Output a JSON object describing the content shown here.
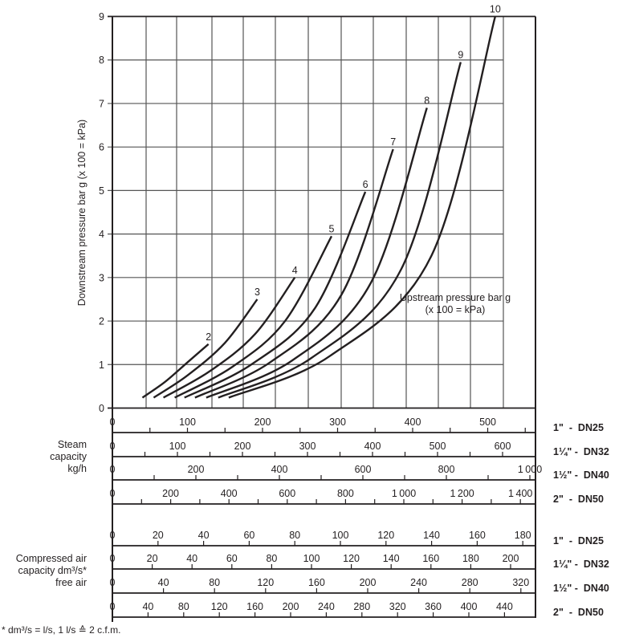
{
  "chart_data": {
    "type": "line",
    "title": "",
    "xlabel": "Steam capacity kg/h / Compressed air capacity dm³/s* free air",
    "ylabel": "Downstream pressure bar g (x 100 = kPa)",
    "ylim": [
      0,
      9
    ],
    "xlim": [
      0,
      560
    ],
    "grid": true,
    "y_ticks": [
      0,
      1,
      2,
      3,
      4,
      5,
      6,
      7,
      8,
      9
    ],
    "curve_annotation": "Upstream pressure bar g\n(x 100 = kPa)",
    "annotation_lines": [
      "Upstream pressure bar g",
      "(x 100 = kPa)"
    ],
    "series_note": "Curves labelled by upstream pressure (bar g); x values on the 1\" DN25 steam scale (kg/h)",
    "series": [
      {
        "name": "2",
        "x": [
          40,
          70,
          100,
          128
        ],
        "y": [
          0.24,
          0.6,
          1.05,
          1.47
        ]
      },
      {
        "name": "3",
        "x": [
          55,
          100,
          150,
          193
        ],
        "y": [
          0.24,
          0.75,
          1.5,
          2.5
        ]
      },
      {
        "name": "4",
        "x": [
          68,
          130,
          190,
          243
        ],
        "y": [
          0.24,
          0.85,
          1.7,
          3.0
        ]
      },
      {
        "name": "5",
        "x": [
          83,
          160,
          230,
          292
        ],
        "y": [
          0.24,
          0.95,
          2.0,
          3.95
        ]
      },
      {
        "name": "6",
        "x": [
          96,
          185,
          270,
          337
        ],
        "y": [
          0.24,
          1.0,
          2.3,
          4.97
        ]
      },
      {
        "name": "7",
        "x": [
          110,
          210,
          305,
          374
        ],
        "y": [
          0.24,
          1.05,
          2.6,
          5.95
        ]
      },
      {
        "name": "8",
        "x": [
          125,
          240,
          345,
          419
        ],
        "y": [
          0.24,
          1.1,
          2.9,
          6.9
        ]
      },
      {
        "name": "9",
        "x": [
          141,
          265,
          385,
          464
        ],
        "y": [
          0.24,
          1.15,
          3.2,
          7.95
        ]
      },
      {
        "name": "10",
        "x": [
          155,
          290,
          425,
          510
        ],
        "y": [
          0.24,
          1.2,
          3.5,
          9.0
        ]
      }
    ],
    "scales": {
      "steam_capacity_kg_h": [
        {
          "size": "1\" - DN25",
          "ticks": [
            0,
            100,
            200,
            300,
            400,
            500
          ],
          "minor_step": 50,
          "max": 560
        },
        {
          "size": "1¼\" - DN32",
          "ticks": [
            0,
            100,
            200,
            300,
            400,
            500,
            600
          ],
          "minor_step": 50,
          "max": 650
        },
        {
          "size": "1½\" - DN40",
          "ticks": [
            0,
            200,
            400,
            600,
            800,
            1000
          ],
          "minor_step": 100,
          "max": 1010
        },
        {
          "size": "2\" - DN50",
          "ticks": [
            0,
            200,
            400,
            600,
            800,
            1000,
            1200,
            1400
          ],
          "minor_step": 100,
          "max": 1450
        }
      ],
      "compressed_air_dm3_s": [
        {
          "size": "1\" - DN25",
          "ticks": [
            0,
            20,
            40,
            60,
            80,
            100,
            120,
            140,
            160,
            180
          ]
        },
        {
          "size": "1¼\" - DN32",
          "ticks": [
            0,
            20,
            40,
            60,
            80,
            100,
            120,
            140,
            160,
            180,
            200
          ]
        },
        {
          "size": "1½\" - DN40",
          "ticks": [
            0,
            40,
            80,
            120,
            160,
            200,
            240,
            280,
            320
          ]
        },
        {
          "size": "2\" - DN50",
          "ticks": [
            0,
            40,
            80,
            120,
            160,
            200,
            240,
            280,
            320,
            360,
            400,
            440
          ]
        }
      ]
    }
  },
  "labels": {
    "y_axis": "Downstream pressure bar g (x 100 = kPa)",
    "upstream_line1": "Upstream pressure bar g",
    "upstream_line2": "(x 100 = kPa)",
    "steam_line1": "Steam",
    "steam_line2": "capacity",
    "steam_line3": "kg/h",
    "air_line1": "Compressed air",
    "air_line2": "capacity dm³/s*",
    "air_line3": "free air",
    "footnote": "* dm³/s = l/s, 1 l/s ≙ 2 c.f.m."
  },
  "sizes": {
    "steam": [
      "1\"  -  DN25",
      "1¼\" -  DN32",
      "1½\" -  DN40",
      "2\"  -  DN50"
    ],
    "air": [
      "1\"  -  DN25",
      "1¼\" -  DN32",
      "1½\" -  DN40",
      "2\"  -  DN50"
    ]
  },
  "colors": {
    "ink": "#231f20",
    "grid": "#555555",
    "background": "#ffffff"
  }
}
